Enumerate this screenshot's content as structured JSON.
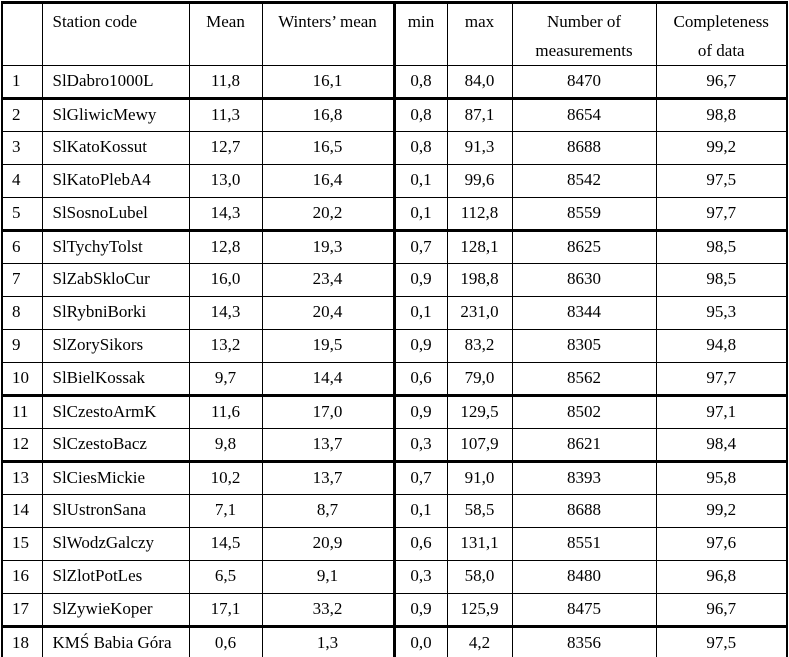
{
  "table": {
    "columns": [
      {
        "label": ""
      },
      {
        "label": "Station code"
      },
      {
        "label": "Mean"
      },
      {
        "label": "Winters’ mean"
      },
      {
        "label": "min"
      },
      {
        "label": "max"
      },
      {
        "label": "Number of\nmeasurements"
      },
      {
        "label": "Completeness\nof data"
      }
    ],
    "rows": [
      [
        "1",
        "SlDabro1000L",
        "11,8",
        "16,1",
        "0,8",
        "84,0",
        "8470",
        "96,7"
      ],
      [
        "2",
        "SlGliwicMewy",
        "11,3",
        "16,8",
        "0,8",
        "87,1",
        "8654",
        "98,8"
      ],
      [
        "3",
        "SlKatoKossut",
        "12,7",
        "16,5",
        "0,8",
        "91,3",
        "8688",
        "99,2"
      ],
      [
        "4",
        "SlKatoPlebA4",
        "13,0",
        "16,4",
        "0,1",
        "99,6",
        "8542",
        "97,5"
      ],
      [
        "5",
        "SlSosnoLubel",
        "14,3",
        "20,2",
        "0,1",
        "112,8",
        "8559",
        "97,7"
      ],
      [
        "6",
        "SlTychyTolst",
        "12,8",
        "19,3",
        "0,7",
        "128,1",
        "8625",
        "98,5"
      ],
      [
        "7",
        "SlZabSkloCur",
        "16,0",
        "23,4",
        "0,9",
        "198,8",
        "8630",
        "98,5"
      ],
      [
        "8",
        "SlRybniBorki",
        "14,3",
        "20,4",
        "0,1",
        "231,0",
        "8344",
        "95,3"
      ],
      [
        "9",
        "SlZorySikors",
        "13,2",
        "19,5",
        "0,9",
        "83,2",
        "8305",
        "94,8"
      ],
      [
        "10",
        "SlBielKossak",
        "9,7",
        "14,4",
        "0,6",
        "79,0",
        "8562",
        "97,7"
      ],
      [
        "11",
        "SlCzestoArmK",
        "11,6",
        "17,0",
        "0,9",
        "129,5",
        "8502",
        "97,1"
      ],
      [
        "12",
        "SlCzestoBacz",
        "9,8",
        "13,7",
        "0,3",
        "107,9",
        "8621",
        "98,4"
      ],
      [
        "13",
        "SlCiesMickie",
        "10,2",
        "13,7",
        "0,7",
        "91,0",
        "8393",
        "95,8"
      ],
      [
        "14",
        "SlUstronSana",
        "7,1",
        "8,7",
        "0,1",
        "58,5",
        "8688",
        "99,2"
      ],
      [
        "15",
        "SlWodzGalczy",
        "14,5",
        "20,9",
        "0,6",
        "131,1",
        "8551",
        "97,6"
      ],
      [
        "16",
        "SlZlotPotLes",
        "6,5",
        "9,1",
        "0,3",
        "58,0",
        "8480",
        "96,8"
      ],
      [
        "17",
        "SlZywieKoper",
        "17,1",
        "33,2",
        "0,9",
        "125,9",
        "8475",
        "96,7"
      ],
      [
        "18",
        "KMŚ Babia Góra",
        "0,6",
        "1,3",
        "0,0",
        "4,2",
        "8356",
        "97,5"
      ]
    ],
    "thick_border_after_rows": [
      1,
      5,
      10,
      12,
      17
    ],
    "border_color": "#000000",
    "background_color": "#ffffff"
  }
}
